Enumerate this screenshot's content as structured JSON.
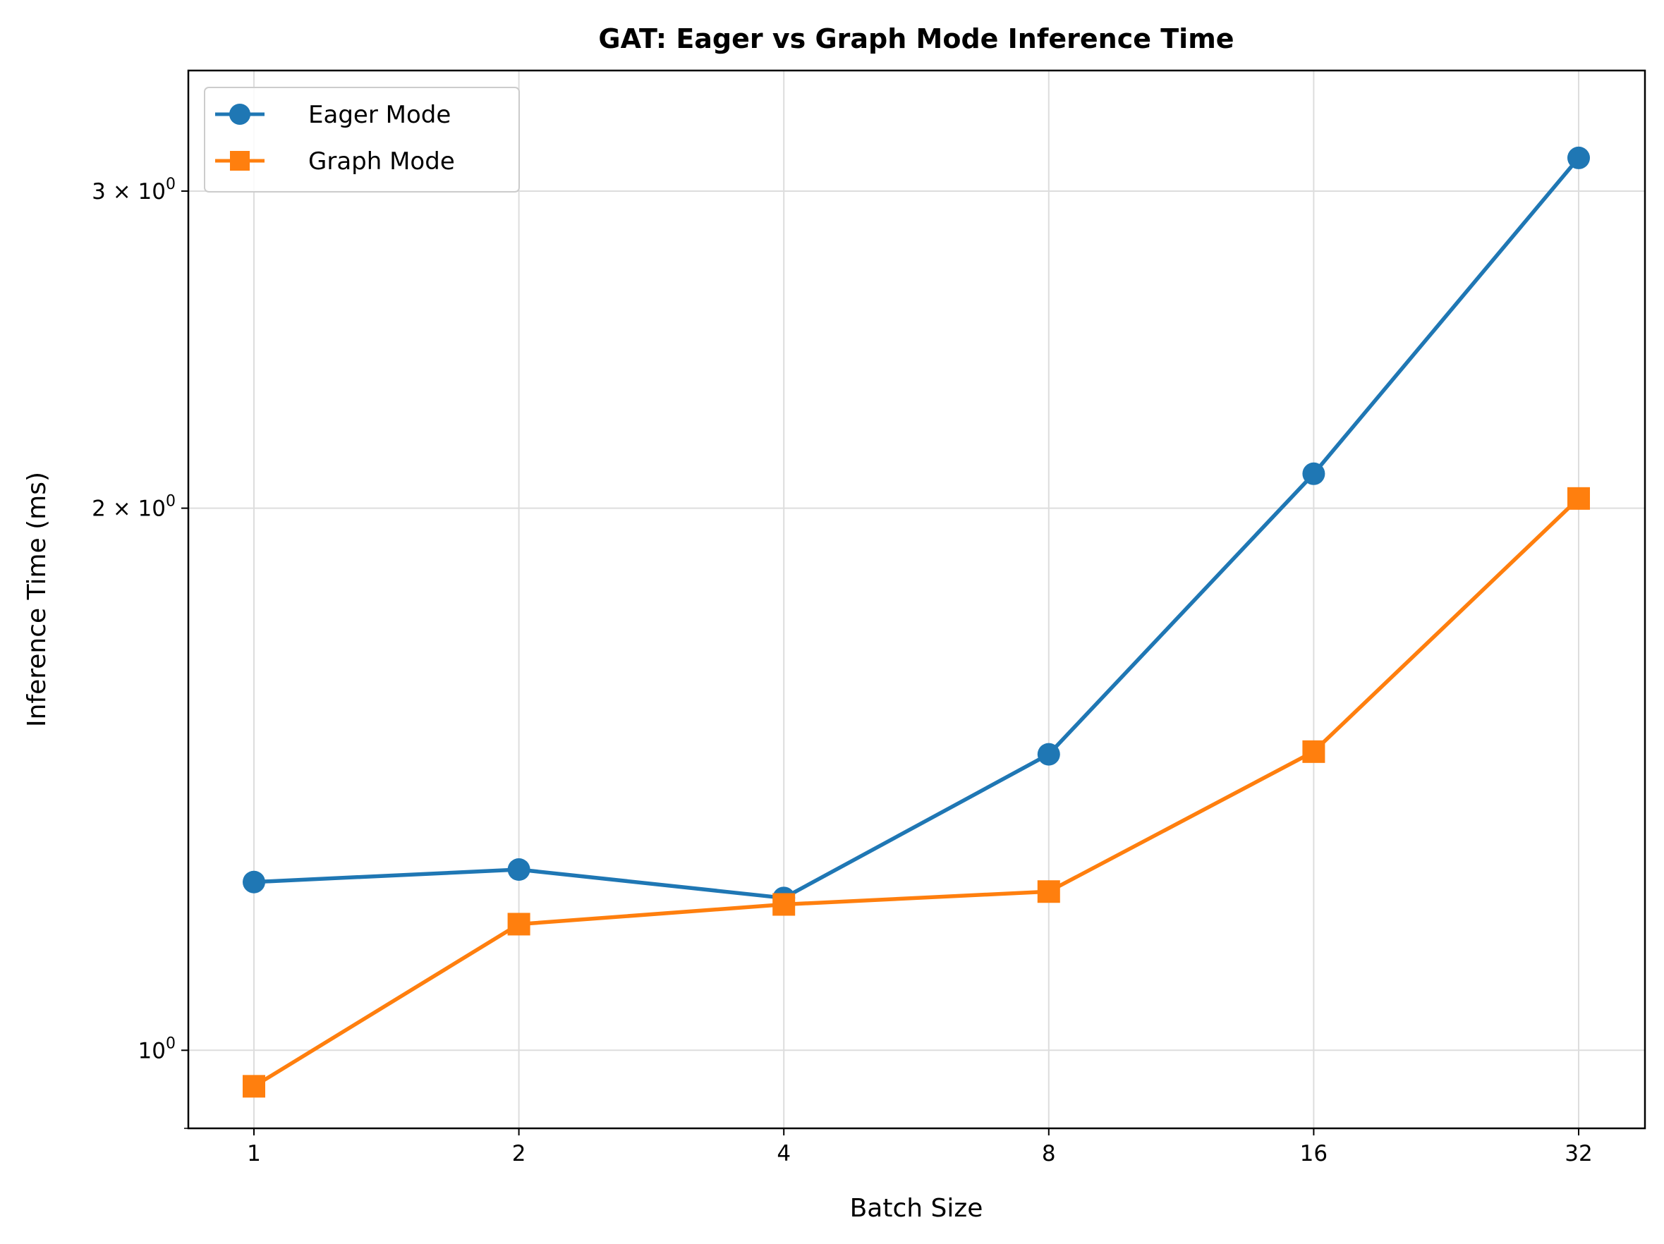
{
  "chart_data": {
    "type": "line",
    "title": "GAT: Eager vs Graph Mode Inference Time",
    "xlabel": "Batch Size",
    "ylabel": "Inference Time (ms)",
    "xscale": "log2",
    "yscale": "log",
    "categories": [
      "1",
      "2",
      "4",
      "8",
      "16",
      "32"
    ],
    "x": [
      1,
      2,
      4,
      8,
      16,
      32
    ],
    "ylim": [
      0.905,
      3.5
    ],
    "y_ticks": [
      {
        "value": 1,
        "label": "10",
        "exp": "0"
      },
      {
        "value": 2,
        "label": "2 × 10",
        "exp": "0"
      },
      {
        "value": 3,
        "label": "3 × 10",
        "exp": "0"
      }
    ],
    "grid": true,
    "legend_position": "upper-left",
    "series": [
      {
        "name": "Eager Mode",
        "color": "#1f77b4",
        "marker": "circle",
        "values": [
          1.24,
          1.26,
          1.215,
          1.46,
          2.09,
          3.13
        ]
      },
      {
        "name": "Graph Mode",
        "color": "#ff7f0e",
        "marker": "square",
        "values": [
          0.955,
          1.175,
          1.205,
          1.225,
          1.465,
          2.025
        ]
      }
    ]
  }
}
